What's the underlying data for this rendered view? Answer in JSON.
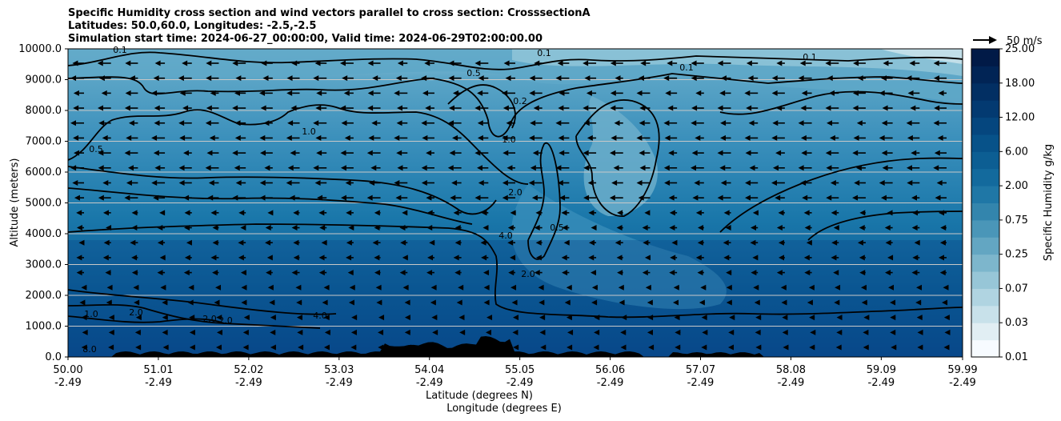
{
  "title": {
    "line1": "Specific Humidity cross section and wind vectors parallel to cross section: CrosssectionA",
    "line2": "Latitudes: 50.0,60.0, Longitudes: -2.5,-2.5",
    "line3": "Simulation start time: 2024-06-27_00:00:00, Valid time: 2024-06-29T02:00:00.00"
  },
  "chart_data": {
    "type": "heatmap",
    "subtype": "filled-contour cross section with line contours and wind vectors",
    "ylabel": "Altitude (meters)",
    "xlabel_line1": "Latitude (degrees N)",
    "xlabel_line2": "Longitude (degrees E)",
    "ylim": [
      0,
      10000
    ],
    "y_ticks": [
      "0.0",
      "1000.0",
      "2000.0",
      "3000.0",
      "4000.0",
      "5000.0",
      "6000.0",
      "7000.0",
      "8000.0",
      "9000.0",
      "10000.0"
    ],
    "y_tick_values": [
      0,
      1000,
      2000,
      3000,
      4000,
      5000,
      6000,
      7000,
      8000,
      9000,
      10000
    ],
    "x_tick_positions": [
      0,
      1,
      2,
      3,
      4,
      5,
      6,
      7,
      8,
      9,
      9.9
    ],
    "x_ticks_lat": [
      "50.00",
      "51.01",
      "52.02",
      "53.03",
      "54.04",
      "55.05",
      "56.06",
      "57.07",
      "58.08",
      "59.09",
      "59.99"
    ],
    "x_ticks_lon": [
      "-2.49",
      "-2.49",
      "-2.49",
      "-2.49",
      "-2.49",
      "-2.49",
      "-2.49",
      "-2.49",
      "-2.49",
      "-2.49",
      "-2.49"
    ],
    "grid": "horizontal lines at y ticks",
    "colorbar": {
      "label": "Specific Humidity g/kg",
      "tick_labels": [
        "0.01",
        "0.03",
        "0.07",
        "0.25",
        "0.75",
        "2.00",
        "6.00",
        "12.00",
        "18.00",
        "25.00"
      ],
      "colors": [
        "#f7fbff",
        "#e1eef3",
        "#c8e1ea",
        "#b0d4e1",
        "#97c6d7",
        "#7db6cc",
        "#63a6c2",
        "#4a96b8",
        "#3385ad",
        "#1f77a6",
        "#136a9d",
        "#0c5e93",
        "#075289",
        "#05467e",
        "#033a71",
        "#022f63",
        "#012455",
        "#011a47"
      ],
      "position": "right"
    },
    "vector_key": {
      "label": "50 m/s",
      "placement": "top-right"
    },
    "contour_labels": [
      "0.1",
      "0.1",
      "0.1",
      "0.1",
      "0.2",
      "0.5",
      "0.5",
      "0.5",
      "1.0",
      "1.0",
      "2.0",
      "2.0",
      "2.0",
      "2.0",
      "4.0",
      "4.0",
      "1.0",
      "2.0",
      "8.0"
    ],
    "terrain": "black filled terrain along the bottom edge"
  }
}
